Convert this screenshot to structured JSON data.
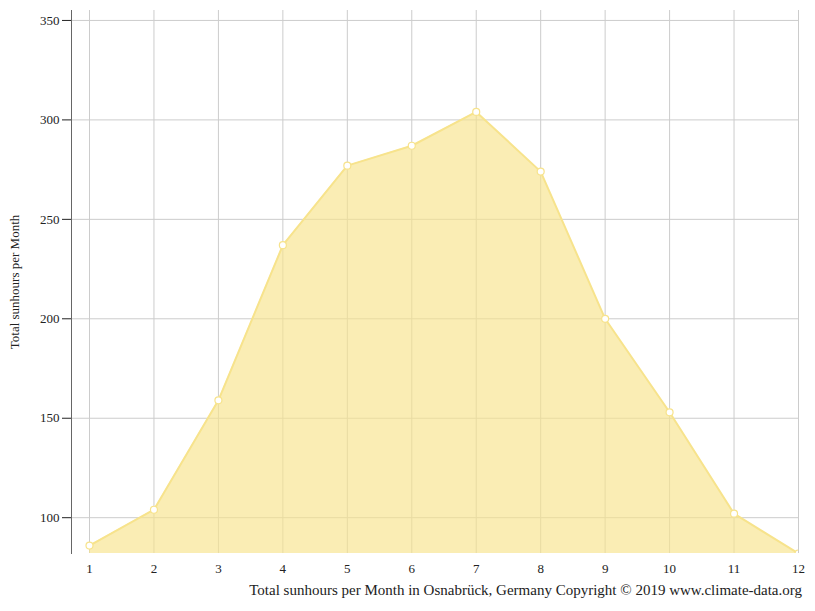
{
  "chart_data": {
    "type": "area",
    "title": "Total sunhours per Month in Osnabrück, Germany Copyright © 2019 www.climate-data.org",
    "y_label": "Total sunhours per Month",
    "x": [
      1,
      2,
      3,
      4,
      5,
      6,
      7,
      8,
      9,
      10,
      11,
      12
    ],
    "values": [
      86,
      104,
      159,
      237,
      277,
      287,
      304,
      274,
      200,
      153,
      102,
      82
    ],
    "color": "#f7e38c",
    "marker": "circle",
    "xlim": [
      1,
      12
    ],
    "xticks": [
      1,
      2,
      3,
      4,
      5,
      6,
      7,
      8,
      9,
      10,
      11,
      12
    ],
    "ylim": [
      82,
      355
    ],
    "yticks": [
      100,
      150,
      200,
      250,
      300,
      350
    ],
    "grid": true
  }
}
